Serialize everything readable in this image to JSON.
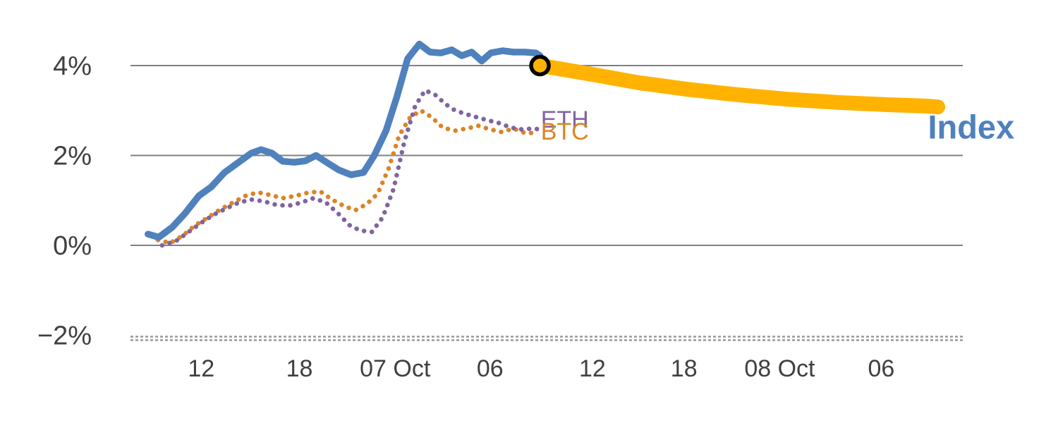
{
  "chart_data": {
    "type": "line",
    "title": "",
    "xlabel": "",
    "ylabel": "",
    "grid": "horizontal",
    "legend_position": "inline-labels",
    "colors": {
      "background": "#ffffff",
      "gridline": "#808080",
      "baseline_hatch": "#999999",
      "axis_text": "#404040",
      "index_blue": "#4F81BD",
      "eth_purple": "#8064A2",
      "btc_orange": "#DB8426",
      "forecast_orange": "#FFB300",
      "marker_ring": "#000000"
    },
    "ylim": [
      -2.6,
      4.9
    ],
    "y_ticks": [
      {
        "value": 4,
        "label": "4%",
        "style": "solid"
      },
      {
        "value": 2,
        "label": "2%",
        "style": "solid"
      },
      {
        "value": 0,
        "label": "0%",
        "style": "solid"
      },
      {
        "value": -2,
        "label": "−2%",
        "style": "hatched"
      }
    ],
    "x_ticks": [
      {
        "pos": 0.085,
        "label": "12"
      },
      {
        "pos": 0.203,
        "label": "18"
      },
      {
        "pos": 0.318,
        "label": "07 Oct"
      },
      {
        "pos": 0.432,
        "label": "06"
      },
      {
        "pos": 0.555,
        "label": "12"
      },
      {
        "pos": 0.665,
        "label": "18"
      },
      {
        "pos": 0.78,
        "label": "08 Oct"
      },
      {
        "pos": 0.902,
        "label": "06"
      }
    ],
    "series": [
      {
        "name": "BTC",
        "color": "#DB8426",
        "line_style": "dotted",
        "stroke_width": 6.5,
        "points": [
          [
            0.033,
            0.12
          ],
          [
            0.048,
            0.05
          ],
          [
            0.063,
            0.22
          ],
          [
            0.078,
            0.45
          ],
          [
            0.093,
            0.62
          ],
          [
            0.108,
            0.8
          ],
          [
            0.123,
            0.95
          ],
          [
            0.138,
            1.1
          ],
          [
            0.153,
            1.18
          ],
          [
            0.168,
            1.12
          ],
          [
            0.183,
            1.05
          ],
          [
            0.198,
            1.1
          ],
          [
            0.213,
            1.17
          ],
          [
            0.228,
            1.2
          ],
          [
            0.242,
            1.02
          ],
          [
            0.256,
            0.88
          ],
          [
            0.27,
            0.78
          ],
          [
            0.284,
            0.92
          ],
          [
            0.297,
            1.15
          ],
          [
            0.31,
            1.7
          ],
          [
            0.323,
            2.45
          ],
          [
            0.336,
            2.85
          ],
          [
            0.349,
            3.0
          ],
          [
            0.362,
            2.85
          ],
          [
            0.375,
            2.62
          ],
          [
            0.39,
            2.55
          ],
          [
            0.404,
            2.6
          ],
          [
            0.418,
            2.66
          ],
          [
            0.432,
            2.58
          ],
          [
            0.446,
            2.52
          ],
          [
            0.46,
            2.6
          ],
          [
            0.474,
            2.5
          ],
          [
            0.487,
            2.5
          ]
        ]
      },
      {
        "name": "ETH",
        "color": "#8064A2",
        "line_style": "dotted",
        "stroke_width": 6.5,
        "points": [
          [
            0.038,
            0.0
          ],
          [
            0.055,
            0.1
          ],
          [
            0.07,
            0.3
          ],
          [
            0.085,
            0.5
          ],
          [
            0.1,
            0.68
          ],
          [
            0.115,
            0.82
          ],
          [
            0.13,
            0.95
          ],
          [
            0.145,
            1.02
          ],
          [
            0.16,
            0.98
          ],
          [
            0.175,
            0.9
          ],
          [
            0.19,
            0.88
          ],
          [
            0.205,
            0.95
          ],
          [
            0.22,
            1.05
          ],
          [
            0.235,
            0.95
          ],
          [
            0.25,
            0.7
          ],
          [
            0.263,
            0.45
          ],
          [
            0.276,
            0.33
          ],
          [
            0.29,
            0.3
          ],
          [
            0.303,
            0.62
          ],
          [
            0.316,
            1.25
          ],
          [
            0.329,
            2.3
          ],
          [
            0.342,
            3.1
          ],
          [
            0.354,
            3.45
          ],
          [
            0.366,
            3.35
          ],
          [
            0.378,
            3.15
          ],
          [
            0.39,
            3.0
          ],
          [
            0.403,
            2.92
          ],
          [
            0.416,
            2.85
          ],
          [
            0.43,
            2.78
          ],
          [
            0.443,
            2.72
          ],
          [
            0.457,
            2.62
          ],
          [
            0.47,
            2.58
          ],
          [
            0.483,
            2.6
          ],
          [
            0.492,
            2.58
          ]
        ]
      },
      {
        "name": "Index",
        "color": "#4F81BD",
        "line_style": "solid",
        "stroke_width": 9.5,
        "points": [
          [
            0.021,
            0.25
          ],
          [
            0.034,
            0.18
          ],
          [
            0.05,
            0.4
          ],
          [
            0.065,
            0.7
          ],
          [
            0.082,
            1.1
          ],
          [
            0.097,
            1.3
          ],
          [
            0.113,
            1.62
          ],
          [
            0.13,
            1.85
          ],
          [
            0.145,
            2.05
          ],
          [
            0.157,
            2.13
          ],
          [
            0.17,
            2.05
          ],
          [
            0.183,
            1.87
          ],
          [
            0.197,
            1.85
          ],
          [
            0.21,
            1.88
          ],
          [
            0.223,
            2.0
          ],
          [
            0.237,
            1.83
          ],
          [
            0.25,
            1.68
          ],
          [
            0.265,
            1.57
          ],
          [
            0.28,
            1.62
          ],
          [
            0.293,
            2.0
          ],
          [
            0.307,
            2.55
          ],
          [
            0.32,
            3.3
          ],
          [
            0.333,
            4.15
          ],
          [
            0.347,
            4.48
          ],
          [
            0.36,
            4.3
          ],
          [
            0.373,
            4.28
          ],
          [
            0.386,
            4.35
          ],
          [
            0.398,
            4.22
          ],
          [
            0.41,
            4.3
          ],
          [
            0.422,
            4.1
          ],
          [
            0.433,
            4.28
          ],
          [
            0.447,
            4.33
          ],
          [
            0.46,
            4.3
          ],
          [
            0.474,
            4.3
          ],
          [
            0.487,
            4.28
          ],
          [
            0.492,
            4.22
          ]
        ]
      }
    ],
    "forecast": {
      "name": "Index forecast",
      "color": "#FFB300",
      "line_style": "solid",
      "stroke_width": 21,
      "points": [
        [
          0.492,
          4.0
        ],
        [
          0.55,
          3.82
        ],
        [
          0.61,
          3.62
        ],
        [
          0.67,
          3.47
        ],
        [
          0.73,
          3.35
        ],
        [
          0.79,
          3.25
        ],
        [
          0.85,
          3.18
        ],
        [
          0.91,
          3.13
        ],
        [
          0.955,
          3.1
        ],
        [
          0.97,
          3.08
        ]
      ]
    },
    "marker": {
      "x": 0.492,
      "y": 4.0,
      "fill": "#FFB300",
      "ring": "#000000",
      "radius": 12.5,
      "ring_width": 5.5
    },
    "annotations": [
      {
        "id": "label-eth",
        "text": "ETH",
        "x": 0.493,
        "y": 2.62,
        "color": "#8064A2",
        "size": 34,
        "weight": "normal",
        "anchor": "start"
      },
      {
        "id": "label-btc",
        "text": "BTC",
        "x": 0.493,
        "y": 2.35,
        "color": "#DB8426",
        "size": 34,
        "weight": "normal",
        "anchor": "start"
      },
      {
        "id": "label-index",
        "text": "Index",
        "x": 0.958,
        "y": 2.38,
        "color": "#4F81BD",
        "size": 47,
        "weight": "bold",
        "anchor": "start"
      }
    ]
  }
}
